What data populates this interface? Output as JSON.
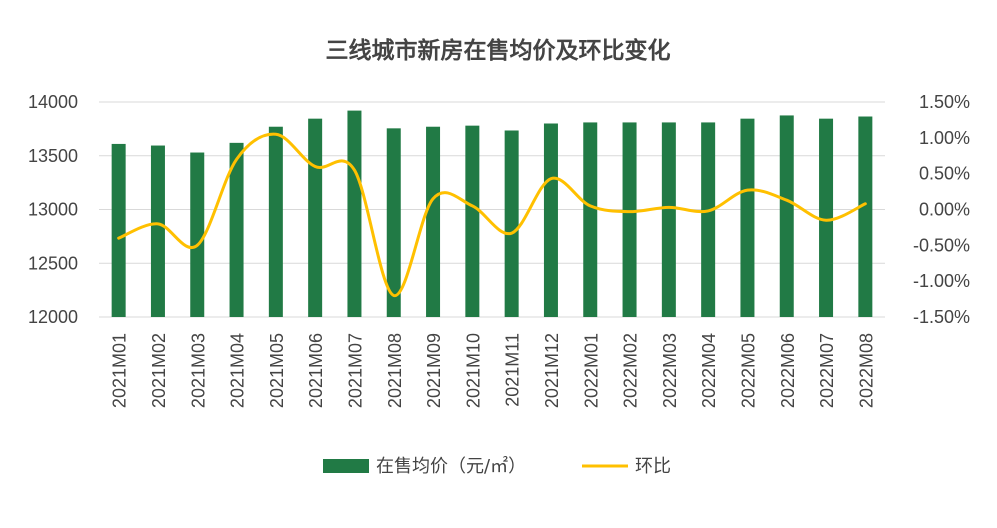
{
  "chart_data": {
    "type": "bar",
    "title": "三线城市新房在售均价及环比变化",
    "categories": [
      "2021M01",
      "2021M02",
      "2021M03",
      "2021M04",
      "2021M05",
      "2021M06",
      "2021M07",
      "2021M08",
      "2021M09",
      "2021M10",
      "2021M11",
      "2021M12",
      "2022M01",
      "2022M02",
      "2022M03",
      "2022M04",
      "2022M05",
      "2022M06",
      "2022M07",
      "2022M08"
    ],
    "series": [
      {
        "name": "在售均价（元/㎡）",
        "type": "bar",
        "axis": "left",
        "color": "#217a45",
        "values": [
          13610,
          13595,
          13530,
          13620,
          13770,
          13845,
          13920,
          13755,
          13770,
          13780,
          13735,
          13800,
          13810,
          13810,
          13810,
          13810,
          13845,
          13875,
          13845,
          13865
        ]
      },
      {
        "name": "环比",
        "type": "line",
        "axis": "right",
        "color": "#ffc000",
        "values": [
          -0.4,
          -0.2,
          -0.5,
          0.7,
          1.05,
          0.6,
          0.55,
          -1.2,
          0.15,
          0.05,
          -0.33,
          0.43,
          0.05,
          -0.03,
          0.03,
          -0.02,
          0.27,
          0.13,
          -0.15,
          0.08
        ]
      }
    ],
    "y_left": {
      "min": 12000,
      "max": 14000,
      "ticks": [
        "14000",
        "13500",
        "13000",
        "12500",
        "12000"
      ],
      "tick_values": [
        14000,
        13500,
        13000,
        12500,
        12000
      ]
    },
    "y_right": {
      "min": -1.5,
      "max": 1.5,
      "ticks": [
        "1.50%",
        "1.00%",
        "0.50%",
        "0.00%",
        "-0.50%",
        "-1.00%",
        "-1.50%"
      ],
      "tick_values": [
        1.5,
        1.0,
        0.5,
        0.0,
        -0.5,
        -1.0,
        -1.5
      ]
    },
    "legend": [
      {
        "label": "在售均价（元/㎡）",
        "kind": "bar",
        "color": "#217a45"
      },
      {
        "label": "环比",
        "kind": "line",
        "color": "#ffc000"
      }
    ]
  }
}
